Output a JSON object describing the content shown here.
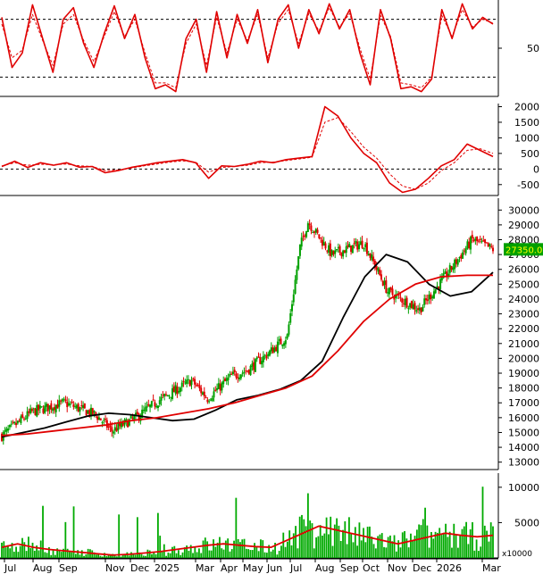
{
  "chart_data": {
    "type": "candlestick",
    "x_labels": [
      "Jul",
      "Aug",
      "Sep",
      "Nov",
      "Dec",
      "2025",
      "Mar",
      "Apr",
      "May",
      "Jun",
      "Jul",
      "Aug",
      "Sep",
      "Oct",
      "Nov",
      "Dec",
      "2026",
      "Mar"
    ],
    "colors": {
      "up": "#00a000",
      "down": "#e00000",
      "ma_fast": "#000000",
      "ma_slow": "#e00000",
      "indicator": "#e00000",
      "volume": "#00aa00",
      "axis": "#000000",
      "last_price_bg": "#00a000",
      "last_price_text": "#ffff00"
    },
    "panels": [
      {
        "name": "oscillator",
        "type": "line",
        "y_tick_labels": [
          "50"
        ],
        "y_range": [
          0,
          100
        ],
        "levels": [
          80,
          20
        ],
        "series": [
          {
            "line": "solid",
            "values": [
              82,
              30,
              45,
              95,
              60,
              25,
              80,
              92,
              55,
              30,
              65,
              94,
              60,
              85,
              40,
              8,
              12,
              5,
              60,
              80,
              25,
              88,
              40,
              85,
              55,
              90,
              35,
              80,
              95,
              50,
              90,
              65,
              96,
              70,
              90,
              45,
              12,
              90,
              60,
              8,
              10,
              5,
              18,
              90,
              60,
              96,
              70,
              82,
              75
            ]
          },
          {
            "line": "dashed",
            "values": [
              75,
              40,
              48,
              85,
              58,
              32,
              75,
              85,
              58,
              36,
              62,
              88,
              62,
              80,
              45,
              14,
              14,
              9,
              55,
              75,
              32,
              82,
              45,
              80,
              58,
              85,
              40,
              76,
              90,
              55,
              86,
              68,
              92,
              72,
              86,
              50,
              18,
              84,
              62,
              14,
              12,
              9,
              20,
              84,
              62,
              90,
              72,
              80,
              76
            ]
          }
        ]
      },
      {
        "name": "macd",
        "type": "line",
        "y_tick_labels": [
          "2000",
          "1500",
          "1000",
          "500",
          "0",
          "-500"
        ],
        "y_range": [
          -850,
          2100
        ],
        "zero_line": 0,
        "series": [
          {
            "line": "solid",
            "values": [
              80,
              250,
              50,
              200,
              120,
              200,
              60,
              80,
              -120,
              -50,
              50,
              120,
              200,
              250,
              300,
              200,
              -300,
              100,
              80,
              150,
              250,
              200,
              300,
              350,
              400,
              2000,
              1700,
              1000,
              500,
              200,
              -450,
              -750,
              -650,
              -300,
              100,
              300,
              800,
              600,
              400
            ]
          },
          {
            "line": "dashed",
            "values": [
              100,
              200,
              120,
              150,
              140,
              160,
              100,
              80,
              -50,
              -30,
              30,
              100,
              160,
              220,
              260,
              220,
              -100,
              50,
              80,
              120,
              200,
              220,
              270,
              320,
              380,
              1500,
              1650,
              1200,
              700,
              350,
              -150,
              -550,
              -650,
              -450,
              -50,
              200,
              600,
              650,
              500
            ]
          }
        ]
      },
      {
        "name": "price",
        "type": "candlestick",
        "y_tick_labels": [
          "30000",
          "29000",
          "28000",
          "27000",
          "26000",
          "25000",
          "24000",
          "23000",
          "22000",
          "21000",
          "20000",
          "19000",
          "18000",
          "17000",
          "16000",
          "15000",
          "14000",
          "13000"
        ],
        "y_range": [
          12500,
          30800
        ],
        "last_price_label": "27350.00",
        "candle_segments": [
          [
            14700,
            16400,
            20
          ],
          [
            16400,
            17000,
            20
          ],
          [
            17000,
            16200,
            20
          ],
          [
            16200,
            15100,
            10
          ],
          [
            15100,
            16000,
            15
          ],
          [
            16000,
            17200,
            15
          ],
          [
            17200,
            18500,
            20
          ],
          [
            18500,
            17300,
            10
          ],
          [
            17300,
            18800,
            15
          ],
          [
            18800,
            19200,
            10
          ],
          [
            19200,
            20500,
            15
          ],
          [
            20500,
            21500,
            10
          ],
          [
            21500,
            27500,
            8
          ],
          [
            27500,
            29200,
            5
          ],
          [
            29200,
            27000,
            15
          ],
          [
            27000,
            27800,
            20
          ],
          [
            27800,
            24500,
            15
          ],
          [
            24500,
            23300,
            20
          ],
          [
            23300,
            25800,
            18
          ],
          [
            25800,
            28000,
            15
          ],
          [
            28000,
            27350,
            13
          ]
        ],
        "lines": [
          {
            "name": "",
            "color": "#000000",
            "values": [
              14700,
              15000,
              15300,
              15700,
              16100,
              16300,
              16200,
              16000,
              15800,
              15900,
              16500,
              17200,
              17500,
              17900,
              18500,
              19800,
              22800,
              25500,
              27000,
              26500,
              25000,
              24200,
              24500,
              25800
            ]
          },
          {
            "name": "",
            "color": "#e00000",
            "values": [
              14800,
              14900,
              15100,
              15300,
              15500,
              15800,
              16000,
              16300,
              16600,
              17000,
              17500,
              18000,
              18800,
              20500,
              22500,
              24000,
              25000,
              25500,
              25600,
              25600
            ]
          }
        ]
      },
      {
        "name": "volume",
        "type": "bar",
        "y_tick_labels": [
          "10000",
          "5000"
        ],
        "y_range": [
          0,
          12000
        ],
        "unit_label": "x10000",
        "ma_values": [
          1500,
          2000,
          1500,
          1200,
          1000,
          800,
          600,
          400,
          500,
          700,
          900,
          1200,
          1500,
          1800,
          2000,
          1800,
          1600,
          1500,
          2500,
          3500,
          4500,
          4000,
          3500,
          3000,
          2500,
          2000,
          2500,
          3000,
          3500,
          3200,
          3000,
          3200
        ]
      }
    ]
  }
}
